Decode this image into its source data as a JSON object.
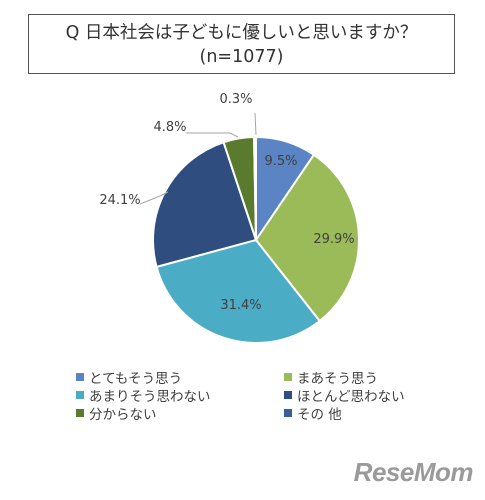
{
  "title": {
    "line1": "Q 日本社会は子どもに優しいと思いますか？",
    "line2": "(n=1077)"
  },
  "chart_data": {
    "type": "pie",
    "categories": [
      "とてもそう思う",
      "まあそう思う",
      "あまりそう思わない",
      "ほとんど思わない",
      "分からない",
      "その 他"
    ],
    "values": [
      9.5,
      29.9,
      31.4,
      24.1,
      4.8,
      0.3
    ],
    "labels": [
      "9.5%",
      "29.9%",
      "31.4%",
      "24.1%",
      "4.8%",
      "0.3%"
    ],
    "colors": [
      "#5b84c4",
      "#9bbb59",
      "#4bacc6",
      "#2f4d7e",
      "#5a7a2e",
      "#37609a"
    ],
    "start_angle": "12 o'clock",
    "direction": "clockwise",
    "legend_position": "bottom"
  },
  "watermark": "ReseMom"
}
